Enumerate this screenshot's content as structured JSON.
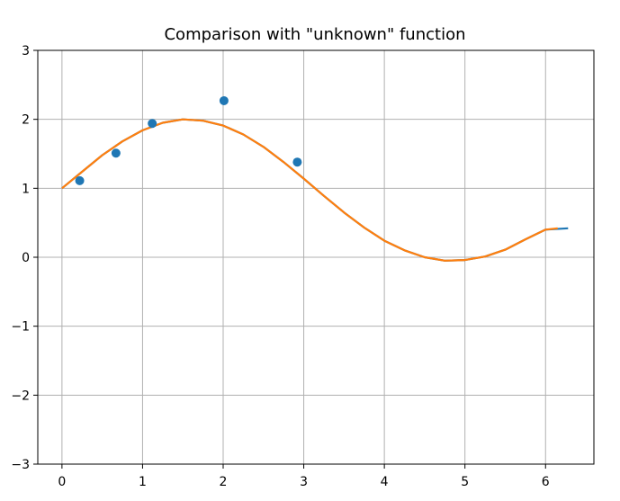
{
  "chart_data": {
    "type": "line",
    "title": "Comparison with \"unknown\" function",
    "xlabel": "",
    "ylabel": "",
    "xlim": [
      -0.3,
      6.6
    ],
    "ylim": [
      -3,
      3
    ],
    "x_ticks": [
      0,
      1,
      2,
      3,
      4,
      5,
      6
    ],
    "y_ticks": [
      -3,
      -2,
      -1,
      0,
      1,
      2,
      3
    ],
    "x_tick_labels": [
      "0",
      "1",
      "2",
      "3",
      "4",
      "5",
      "6"
    ],
    "y_tick_labels": [
      "−3",
      "−2",
      "−1",
      "0",
      "1",
      "2",
      "3"
    ],
    "grid": true,
    "colors": {
      "blue": "#1f77b4",
      "orange": "#ff7f0e"
    },
    "points": {
      "x": [
        0.22,
        0.67,
        1.12,
        2.01,
        2.92
      ],
      "y": [
        1.11,
        1.51,
        1.94,
        2.27,
        1.38
      ]
    },
    "series": [
      {
        "x": [
          0.0,
          0.25,
          0.5,
          0.75,
          1.0,
          1.25,
          1.5,
          1.75,
          2.0,
          2.25,
          2.5,
          2.75,
          3.0,
          3.25,
          3.5,
          3.75,
          4.0,
          4.25,
          4.5,
          4.75,
          5.0,
          5.25,
          5.5,
          5.75,
          6.0,
          6.28
        ],
        "y": [
          1.0,
          1.24,
          1.48,
          1.68,
          1.84,
          1.95,
          2.0,
          1.98,
          1.91,
          1.78,
          1.6,
          1.38,
          1.14,
          0.89,
          0.65,
          0.43,
          0.24,
          0.1,
          0.0,
          -0.05,
          -0.04,
          0.01,
          0.11,
          0.26,
          0.4,
          0.42
        ]
      },
      {
        "x": [
          0.0,
          0.25,
          0.5,
          0.75,
          1.0,
          1.25,
          1.5,
          1.75,
          2.0,
          2.25,
          2.5,
          2.75,
          3.0,
          3.25,
          3.5,
          3.75,
          4.0,
          4.25,
          4.5,
          4.75,
          5.0,
          5.25,
          5.5,
          5.75,
          6.0,
          6.15
        ],
        "y": [
          1.0,
          1.24,
          1.48,
          1.68,
          1.84,
          1.95,
          2.0,
          1.98,
          1.91,
          1.78,
          1.6,
          1.38,
          1.14,
          0.89,
          0.65,
          0.43,
          0.24,
          0.1,
          0.0,
          -0.05,
          -0.04,
          0.01,
          0.11,
          0.26,
          0.4,
          0.42
        ]
      }
    ]
  }
}
